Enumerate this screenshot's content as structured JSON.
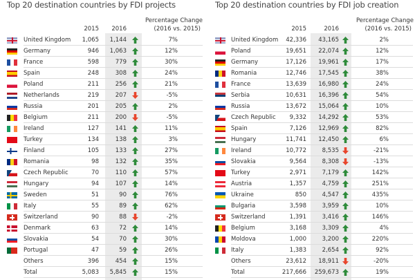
{
  "colors": {
    "up": "#2e8b3a",
    "down": "#e8452c",
    "shade": "#ebebeb"
  },
  "projects": {
    "title": "Top 20 destination countries by FDI projects",
    "headers": {
      "y2015": "2015",
      "y2016": "2016",
      "pct_line1": "Percentage Change",
      "pct_line2": "(2016 vs. 2015)"
    },
    "rows": [
      {
        "flag": "gb",
        "country": "United Kingdom",
        "v2015": "1,065",
        "v2016": "1,144",
        "dir": "up",
        "pct": "7%"
      },
      {
        "flag": "de",
        "country": "Germany",
        "v2015": "946",
        "v2016": "1,063",
        "dir": "up",
        "pct": "12%"
      },
      {
        "flag": "fr",
        "country": "France",
        "v2015": "598",
        "v2016": "779",
        "dir": "up",
        "pct": "30%"
      },
      {
        "flag": "es",
        "country": "Spain",
        "v2015": "248",
        "v2016": "308",
        "dir": "up",
        "pct": "24%"
      },
      {
        "flag": "pl",
        "country": "Poland",
        "v2015": "211",
        "v2016": "256",
        "dir": "up",
        "pct": "21%"
      },
      {
        "flag": "nl",
        "country": "Netherlands",
        "v2015": "219",
        "v2016": "207",
        "dir": "down",
        "pct": "-5%"
      },
      {
        "flag": "ru",
        "country": "Russia",
        "v2015": "201",
        "v2016": "205",
        "dir": "up",
        "pct": "2%"
      },
      {
        "flag": "be",
        "country": "Belgium",
        "v2015": "211",
        "v2016": "200",
        "dir": "down",
        "pct": "-5%"
      },
      {
        "flag": "ie",
        "country": "Ireland",
        "v2015": "127",
        "v2016": "141",
        "dir": "up",
        "pct": "11%"
      },
      {
        "flag": "tr",
        "country": "Turkey",
        "v2015": "134",
        "v2016": "138",
        "dir": "up",
        "pct": "3%"
      },
      {
        "flag": "fi",
        "country": "Finland",
        "v2015": "105",
        "v2016": "133",
        "dir": "up",
        "pct": "27%"
      },
      {
        "flag": "ro",
        "country": "Romania",
        "v2015": "98",
        "v2016": "132",
        "dir": "up",
        "pct": "35%"
      },
      {
        "flag": "cz",
        "country": "Czech Republic",
        "v2015": "70",
        "v2016": "110",
        "dir": "up",
        "pct": "57%"
      },
      {
        "flag": "hu",
        "country": "Hungary",
        "v2015": "94",
        "v2016": "107",
        "dir": "up",
        "pct": "14%"
      },
      {
        "flag": "se",
        "country": "Sweden",
        "v2015": "51",
        "v2016": "90",
        "dir": "up",
        "pct": "76%"
      },
      {
        "flag": "it",
        "country": "Italy",
        "v2015": "55",
        "v2016": "89",
        "dir": "up",
        "pct": "62%"
      },
      {
        "flag": "ch",
        "country": "Switzerland",
        "v2015": "90",
        "v2016": "88",
        "dir": "down",
        "pct": "-2%"
      },
      {
        "flag": "dk",
        "country": "Denmark",
        "v2015": "63",
        "v2016": "72",
        "dir": "up",
        "pct": "14%"
      },
      {
        "flag": "sk",
        "country": "Slovakia",
        "v2015": "54",
        "v2016": "70",
        "dir": "up",
        "pct": "30%"
      },
      {
        "flag": "pt",
        "country": "Portugal",
        "v2015": "47",
        "v2016": "59",
        "dir": "up",
        "pct": "26%"
      },
      {
        "flag": "",
        "country": "Others",
        "v2015": "396",
        "v2016": "454",
        "dir": "up",
        "pct": "15%"
      },
      {
        "flag": "",
        "country": "Total",
        "v2015": "5,083",
        "v2016": "5,845",
        "dir": "up",
        "pct": "15%"
      }
    ]
  },
  "jobs": {
    "title": "Top 20 destination countries by FDI job creation",
    "headers": {
      "y2015": "2015",
      "y2016": "2016",
      "pct_line1": "Percentage Change",
      "pct_line2": "(2016 vs. 2015)"
    },
    "rows": [
      {
        "flag": "gb",
        "country": "United Kingdom",
        "v2015": "42,336",
        "v2016": "43,165",
        "dir": "up",
        "pct": "2%"
      },
      {
        "flag": "pl",
        "country": "Poland",
        "v2015": "19,651",
        "v2016": "22,074",
        "dir": "up",
        "pct": "12%"
      },
      {
        "flag": "de",
        "country": "Germany",
        "v2015": "17,126",
        "v2016": "19,961",
        "dir": "up",
        "pct": "17%"
      },
      {
        "flag": "ro",
        "country": "Romania",
        "v2015": "12,746",
        "v2016": "17,545",
        "dir": "up",
        "pct": "38%"
      },
      {
        "flag": "fr",
        "country": "France",
        "v2015": "13,639",
        "v2016": "16,980",
        "dir": "up",
        "pct": "24%"
      },
      {
        "flag": "rs",
        "country": "Serbia",
        "v2015": "10,631",
        "v2016": "16,396",
        "dir": "up",
        "pct": "54%"
      },
      {
        "flag": "ru",
        "country": "Russia",
        "v2015": "13,672",
        "v2016": "15,064",
        "dir": "up",
        "pct": "10%"
      },
      {
        "flag": "cz",
        "country": "Czech Republic",
        "v2015": "9,332",
        "v2016": "14,292",
        "dir": "up",
        "pct": "53%"
      },
      {
        "flag": "es",
        "country": "Spain",
        "v2015": "7,126",
        "v2016": "12,969",
        "dir": "up",
        "pct": "82%"
      },
      {
        "flag": "hu",
        "country": "Hungary",
        "v2015": "11,741",
        "v2016": "12,450",
        "dir": "up",
        "pct": "6%"
      },
      {
        "flag": "ie",
        "country": "Ireland",
        "v2015": "10,772",
        "v2016": "8,535",
        "dir": "down",
        "pct": "-21%"
      },
      {
        "flag": "sk",
        "country": "Slovakia",
        "v2015": "9,564",
        "v2016": "8,308",
        "dir": "down",
        "pct": "-13%"
      },
      {
        "flag": "tr",
        "country": "Turkey",
        "v2015": "2,971",
        "v2016": "7,179",
        "dir": "up",
        "pct": "142%"
      },
      {
        "flag": "at",
        "country": "Austria",
        "v2015": "1,357",
        "v2016": "4,759",
        "dir": "up",
        "pct": "251%"
      },
      {
        "flag": "ua",
        "country": "Ukraine",
        "v2015": "850",
        "v2016": "4,547",
        "dir": "up",
        "pct": "435%"
      },
      {
        "flag": "bg",
        "country": "Bulgaria",
        "v2015": "3,598",
        "v2016": "3,959",
        "dir": "up",
        "pct": "10%"
      },
      {
        "flag": "ch",
        "country": "Switzerland",
        "v2015": "1,391",
        "v2016": "3,416",
        "dir": "up",
        "pct": "146%"
      },
      {
        "flag": "be",
        "country": "Belgium",
        "v2015": "3,168",
        "v2016": "3,309",
        "dir": "up",
        "pct": "4%"
      },
      {
        "flag": "md",
        "country": "Moldova",
        "v2015": "1,000",
        "v2016": "3,200",
        "dir": "up",
        "pct": "220%"
      },
      {
        "flag": "it",
        "country": "Italy",
        "v2015": "1,383",
        "v2016": "2,654",
        "dir": "up",
        "pct": "92%"
      },
      {
        "flag": "",
        "country": "Others",
        "v2015": "23,612",
        "v2016": "18,911",
        "dir": "down",
        "pct": "-20%"
      },
      {
        "flag": "",
        "country": "Total",
        "v2015": "217,666",
        "v2016": "259,673",
        "dir": "up",
        "pct": "19%"
      }
    ]
  }
}
